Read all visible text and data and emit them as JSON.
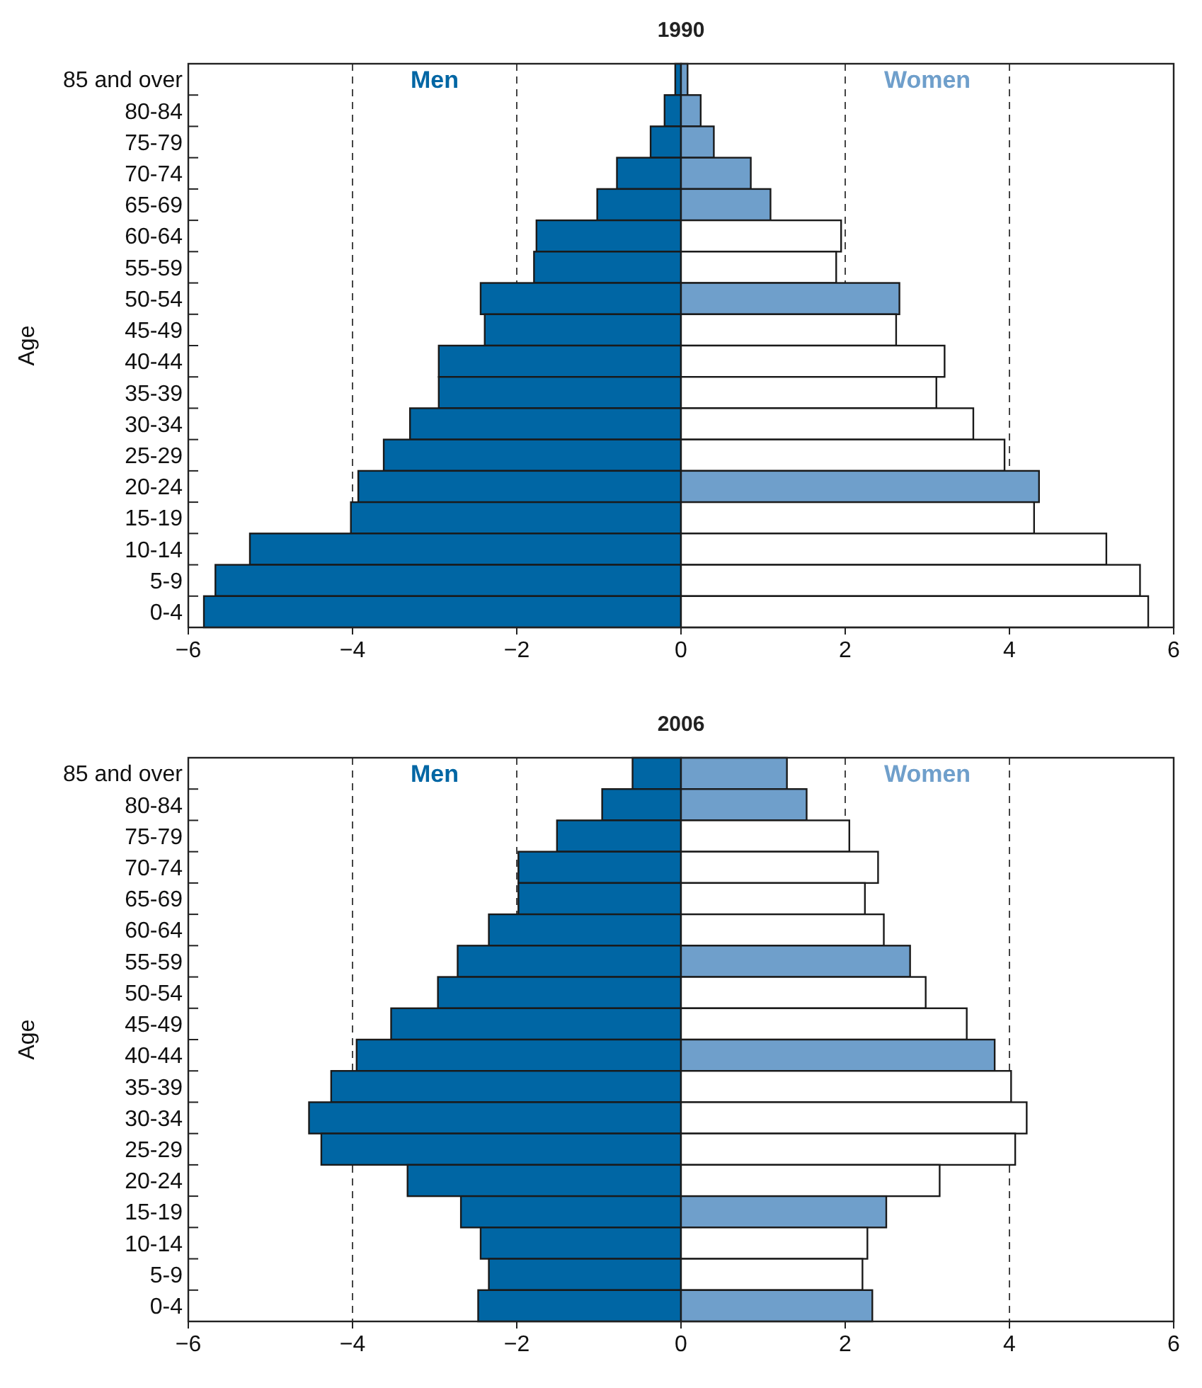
{
  "chart_data": [
    {
      "type": "bar",
      "orientation": "horizontal",
      "stacked": true,
      "title": "1990",
      "ylabel": "Age",
      "categories": [
        "85 and over",
        "80-84",
        "75-79",
        "70-74",
        "65-69",
        "60-64",
        "55-59",
        "50-54",
        "45-49",
        "40-44",
        "35-39",
        "30-34",
        "25-29",
        "20-24",
        "15-19",
        "10-14",
        "5-9",
        "0-4"
      ],
      "xlim": [
        -6,
        6
      ],
      "xticks": [
        -6,
        -4,
        -2,
        0,
        2,
        4,
        6
      ],
      "ref_lines": [
        {
          "axis": "x",
          "value": -4,
          "line_style": "dashed"
        },
        {
          "axis": "x",
          "value": -2,
          "line_style": "dashed"
        },
        {
          "axis": "x",
          "value": 2,
          "line_style": "dashed"
        },
        {
          "axis": "x",
          "value": 4,
          "line_style": "dashed"
        }
      ],
      "series": [
        {
          "name": "Men",
          "color": "#0066a4",
          "values": [
            -0.07,
            -0.2,
            -0.37,
            -0.78,
            -1.02,
            -1.76,
            -1.79,
            -2.44,
            -2.39,
            -2.95,
            -2.95,
            -3.3,
            -3.62,
            -3.93,
            -4.02,
            -5.25,
            -5.67,
            -5.81
          ]
        },
        {
          "name": "Women",
          "colors": [
            "#6f9fcb",
            "#6f9fcb",
            "#6f9fcb",
            "#6f9fcb",
            "#6f9fcb",
            "#ffffff",
            "#ffffff",
            "#6f9fcb",
            "#ffffff",
            "#ffffff",
            "#ffffff",
            "#ffffff",
            "#ffffff",
            "#6f9fcb",
            "#ffffff",
            "#ffffff",
            "#ffffff",
            "#ffffff"
          ],
          "values": [
            0.08,
            0.24,
            0.4,
            0.85,
            1.09,
            1.95,
            1.89,
            2.66,
            2.62,
            3.21,
            3.11,
            3.56,
            3.94,
            4.36,
            4.3,
            5.18,
            5.59,
            5.69
          ]
        }
      ]
    },
    {
      "type": "bar",
      "orientation": "horizontal",
      "stacked": true,
      "title": "2006",
      "ylabel": "Age",
      "categories": [
        "85 and over",
        "80-84",
        "75-79",
        "70-74",
        "65-69",
        "60-64",
        "55-59",
        "50-54",
        "45-49",
        "40-44",
        "35-39",
        "30-34",
        "25-29",
        "20-24",
        "15-19",
        "10-14",
        "5-9",
        "0-4"
      ],
      "xlim": [
        -6,
        6
      ],
      "xticks": [
        -6,
        -4,
        -2,
        0,
        2,
        4,
        6
      ],
      "ref_lines": [
        {
          "axis": "x",
          "value": -4,
          "line_style": "dashed"
        },
        {
          "axis": "x",
          "value": -2,
          "line_style": "dashed"
        },
        {
          "axis": "x",
          "value": 2,
          "line_style": "dashed"
        },
        {
          "axis": "x",
          "value": 4,
          "line_style": "dashed"
        }
      ],
      "series": [
        {
          "name": "Men",
          "color": "#0066a4",
          "values": [
            -0.59,
            -0.96,
            -1.51,
            -1.98,
            -1.98,
            -2.34,
            -2.72,
            -2.96,
            -3.53,
            -3.95,
            -4.26,
            -4.53,
            -4.38,
            -3.33,
            -2.68,
            -2.44,
            -2.34,
            -2.47
          ]
        },
        {
          "name": "Women",
          "colors": [
            "#6f9fcb",
            "#6f9fcb",
            "#ffffff",
            "#ffffff",
            "#ffffff",
            "#ffffff",
            "#6f9fcb",
            "#ffffff",
            "#ffffff",
            "#6f9fcb",
            "#ffffff",
            "#ffffff",
            "#ffffff",
            "#ffffff",
            "#6f9fcb",
            "#ffffff",
            "#ffffff",
            "#6f9fcb"
          ],
          "values": [
            1.29,
            1.53,
            2.05,
            2.4,
            2.24,
            2.47,
            2.79,
            2.98,
            3.48,
            3.82,
            4.02,
            4.21,
            4.07,
            3.15,
            2.5,
            2.27,
            2.21,
            2.33
          ]
        }
      ]
    }
  ]
}
